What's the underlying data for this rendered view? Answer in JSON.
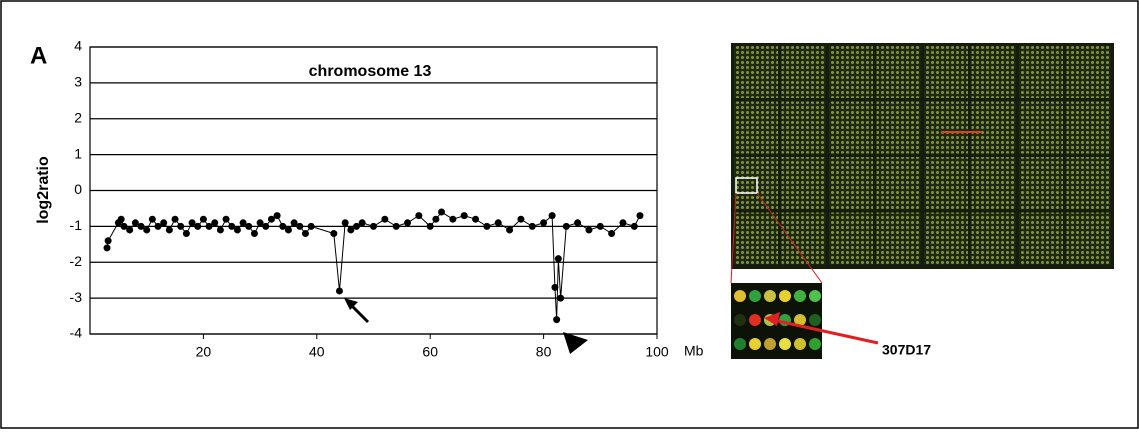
{
  "chart_data": {
    "type": "line",
    "panel_label": "A",
    "title": "chromosome 13",
    "ylabel": "log2ratio",
    "xlabel": "Mb",
    "x": [
      3,
      3.2,
      5,
      5.5,
      6,
      7,
      8,
      9,
      10,
      11,
      12,
      13,
      14,
      15,
      16,
      17,
      18,
      19,
      20,
      21,
      22,
      23,
      24,
      25,
      26,
      27,
      28,
      29,
      30,
      31,
      32,
      33,
      34,
      35,
      36,
      37,
      38,
      39,
      43,
      44,
      45,
      46,
      47,
      48,
      50,
      52,
      54,
      56,
      58,
      60,
      61,
      62,
      64,
      66,
      68,
      70,
      72,
      74,
      76,
      78,
      80,
      81.5,
      82,
      82.3,
      82.6,
      83,
      84,
      86,
      88,
      90,
      92,
      94,
      96,
      97
    ],
    "values": [
      -1.6,
      -1.4,
      -0.9,
      -0.8,
      -1.0,
      -1.1,
      -0.9,
      -1.0,
      -1.1,
      -0.8,
      -1.0,
      -0.9,
      -1.1,
      -0.8,
      -1.0,
      -1.2,
      -0.9,
      -1.0,
      -0.8,
      -1.0,
      -0.9,
      -1.1,
      -0.8,
      -1.0,
      -1.1,
      -0.9,
      -1.0,
      -1.2,
      -0.9,
      -1.0,
      -0.8,
      -0.7,
      -1.0,
      -1.1,
      -0.9,
      -1.0,
      -1.2,
      -1.0,
      -1.2,
      -2.8,
      -0.9,
      -1.1,
      -1.0,
      -0.9,
      -1.0,
      -0.8,
      -1.0,
      -0.9,
      -0.7,
      -1.0,
      -0.8,
      -0.6,
      -0.8,
      -0.7,
      -0.8,
      -1.0,
      -0.9,
      -1.1,
      -0.8,
      -1.0,
      -0.9,
      -0.7,
      -2.7,
      -3.6,
      -1.9,
      -3.0,
      -1.0,
      -0.9,
      -1.1,
      -1.0,
      -1.2,
      -0.9,
      -1.0,
      -0.7
    ],
    "color": "#000000",
    "xlim": [
      0,
      100
    ],
    "xticks": [
      20,
      40,
      60,
      80,
      100
    ],
    "ylim": [
      -4,
      4
    ],
    "yticks": [
      -4,
      -3,
      -2,
      -1,
      0,
      1,
      2,
      3,
      4
    ],
    "grid": true,
    "annotations": [
      "307D17"
    ]
  }
}
